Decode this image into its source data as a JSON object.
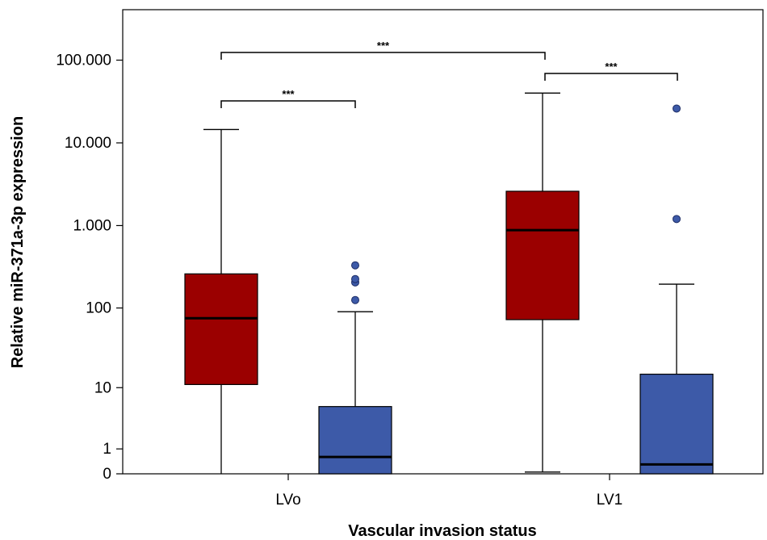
{
  "chart_data": {
    "type": "box",
    "xlabel": "Vascular invasion status",
    "ylabel": "Relative miR-371a-3p expression",
    "y_scale": "log1p",
    "ylim": [
      0,
      300000
    ],
    "y_ticks": [
      0,
      1,
      10,
      100,
      1000,
      10000,
      100000
    ],
    "y_tick_labels": [
      "0",
      "1",
      "10",
      "100",
      "1.000",
      "10.000",
      "100.000"
    ],
    "categories": [
      "LVo",
      "LV1"
    ],
    "series": [
      {
        "color": "#9b0000",
        "boxes": [
          {
            "category": "LVo",
            "whisker_low": 0,
            "q1": 11,
            "median": 75,
            "q3": 260,
            "whisker_high": 14500,
            "outliers": []
          },
          {
            "category": "LV1",
            "whisker_low": 0.05,
            "q1": 72,
            "median": 880,
            "q3": 2600,
            "whisker_high": 40000,
            "outliers": []
          }
        ]
      },
      {
        "color": "#3d5aa8",
        "boxes": [
          {
            "category": "LVo",
            "whisker_low": 0,
            "q1": 0,
            "median": 0.6,
            "q3": 5.5,
            "whisker_high": 90,
            "outliers": [
              125,
              205,
              225,
              330
            ]
          },
          {
            "category": "LV1",
            "whisker_low": 0,
            "q1": 0,
            "median": 0.3,
            "q3": 15,
            "whisker_high": 195,
            "outliers": [
              1200,
              26000
            ]
          }
        ]
      }
    ],
    "annotations": [
      {
        "text": "***",
        "from": "LVo / series 1",
        "to": "LVo / series 2"
      },
      {
        "text": "***",
        "from": "LVo / series 1",
        "to": "LV1 / series 1"
      },
      {
        "text": "***",
        "from": "LV1 / series 1",
        "to": "LV1 / series 2"
      }
    ],
    "grid": false,
    "legend": "none"
  }
}
